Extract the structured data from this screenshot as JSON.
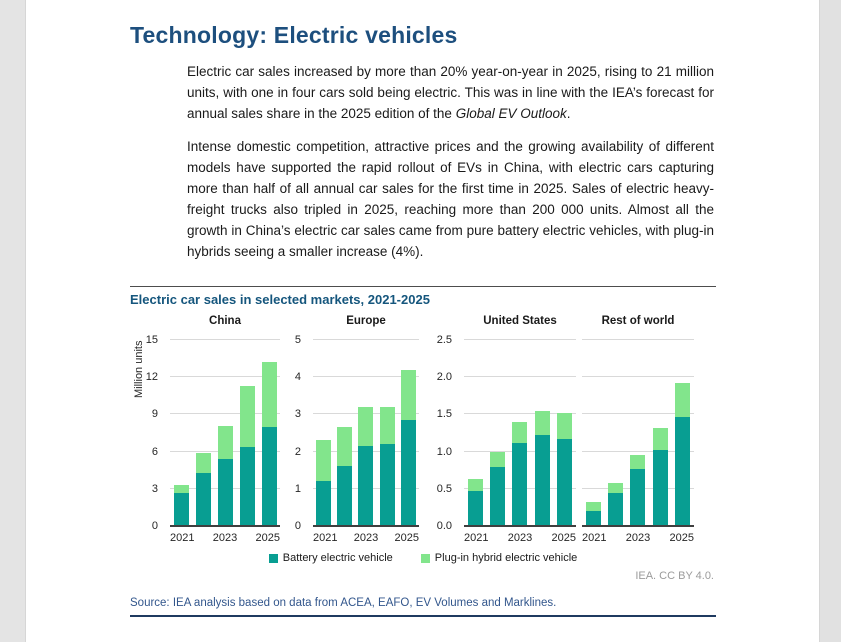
{
  "page": {
    "title": "Technology: Electric vehicles",
    "paragraph1": {
      "text": "Electric car sales increased by more than 20% year-on-year in 2025, rising to 21 million units, with one in four cars sold being electric. This was in line with the IEA’s forecast for annual sales share in the 2025 edition of the ",
      "italic": "Global EV Outlook",
      "after_italic": "."
    },
    "paragraph2": "Intense domestic competition, attractive prices and the growing availability of different models have supported the rapid rollout of EVs in China, with electric cars capturing more than half of all annual car sales for the first time in 2025. Sales of electric heavy-freight trucks also tripled in 2025, reaching more than 200 000 units. Almost all the growth in China’s electric car sales came from pure battery electric vehicles, with plug-in hybrids seeing a smaller increase (4%)."
  },
  "figure": {
    "title": "Electric car sales in selected markets, 2021-2025",
    "credit": "IEA. CC BY 4.0.",
    "source": "Source: IEA analysis based on data from ACEA, EAFO, EV Volumes and Marklines."
  },
  "chart_data": {
    "type": "bar",
    "stacked": true,
    "title": "Electric car sales in selected markets, 2021-2025",
    "ylabel": "Million units",
    "categories": [
      "2021",
      "2022",
      "2023",
      "2024",
      "2025"
    ],
    "x_tick_labels_shown": [
      "2021",
      "2023",
      "2025"
    ],
    "grid": true,
    "legend_position": "bottom",
    "legend": [
      {
        "label": "Battery electric vehicle",
        "color": "#089e92"
      },
      {
        "label": "Plug-in hybrid electric vehicle",
        "color": "#82e58c"
      }
    ],
    "panels": [
      {
        "title": "China",
        "ylim": [
          0,
          15
        ],
        "yticks": [
          0,
          3,
          6,
          9,
          12,
          15
        ],
        "ytick_labels": [
          "0",
          "3",
          "6",
          "9",
          "12",
          "15"
        ],
        "series": [
          {
            "name": "Battery electric vehicle",
            "values": [
              2.7,
              4.3,
              5.4,
              6.4,
              8.0
            ]
          },
          {
            "name": "Plug-in hybrid electric vehicle",
            "values": [
              0.6,
              1.6,
              2.7,
              4.9,
              5.2
            ]
          }
        ]
      },
      {
        "title": "Europe",
        "ylim": [
          0,
          5
        ],
        "yticks": [
          0,
          1,
          2,
          3,
          4,
          5
        ],
        "ytick_labels": [
          "0",
          "1",
          "2",
          "3",
          "4",
          "5"
        ],
        "series": [
          {
            "name": "Battery electric vehicle",
            "values": [
              1.2,
              1.6,
              2.15,
              2.2,
              2.85
            ]
          },
          {
            "name": "Plug-in hybrid electric vehicle",
            "values": [
              1.1,
              1.05,
              1.05,
              1.0,
              1.35
            ]
          }
        ]
      },
      {
        "title": "United States",
        "ylim": [
          0,
          2.5
        ],
        "yticks": [
          0,
          0.5,
          1,
          1.5,
          2,
          2.5
        ],
        "ytick_labels": [
          "0.0",
          "0.5",
          "1.0",
          "1.5",
          "2.0",
          "2.5"
        ],
        "series": [
          {
            "name": "Battery electric vehicle",
            "values": [
              0.47,
              0.79,
              1.11,
              1.22,
              1.17
            ]
          },
          {
            "name": "Plug-in hybrid electric vehicle",
            "values": [
              0.16,
              0.2,
              0.29,
              0.32,
              0.35
            ]
          }
        ]
      },
      {
        "title": "Rest of world",
        "ylim": [
          0,
          2.5
        ],
        "yticks": [
          0,
          0.5,
          1,
          1.5,
          2,
          2.5
        ],
        "ytick_labels": [],
        "series": [
          {
            "name": "Battery electric vehicle",
            "values": [
              0.2,
              0.44,
              0.77,
              1.02,
              1.47
            ]
          },
          {
            "name": "Plug-in hybrid electric vehicle",
            "values": [
              0.12,
              0.14,
              0.18,
              0.3,
              0.45
            ]
          }
        ]
      }
    ]
  },
  "colors": {
    "title_blue": "#1d4f7e",
    "chart_title_blue": "#15567d",
    "source_blue": "#32568c",
    "rule_navy": "#1f3a60",
    "battery_teal": "#089e92",
    "hybrid_green": "#82e58c"
  }
}
